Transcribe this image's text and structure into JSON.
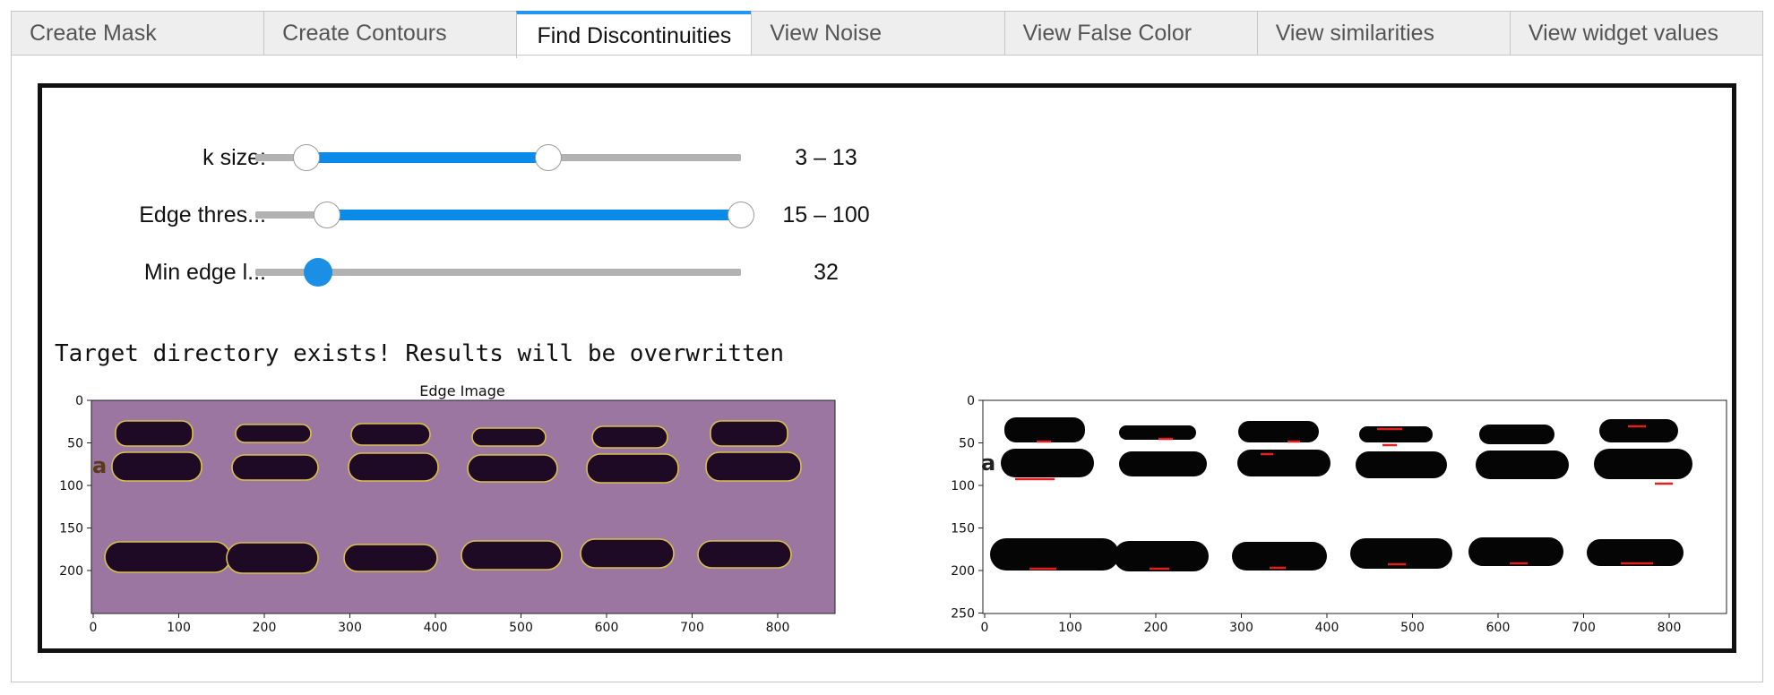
{
  "tabs": [
    {
      "label": "Create Mask",
      "active": false
    },
    {
      "label": "Create Contours",
      "active": false
    },
    {
      "label": "Find Discontinuities",
      "active": true
    },
    {
      "label": "View Noise",
      "active": false
    },
    {
      "label": "View False Color",
      "active": false
    },
    {
      "label": "View similarities",
      "active": false
    },
    {
      "label": "View widget values",
      "active": false
    }
  ],
  "sliders": {
    "ksize": {
      "label": "k size:",
      "readout": "3 – 13",
      "low": 3,
      "high": 13,
      "min": 1,
      "max": 21
    },
    "edge_thresh": {
      "label": "Edge thres...",
      "readout": "15 – 100",
      "low": 15,
      "high": 100,
      "min": 0,
      "max": 100
    },
    "min_edge_len": {
      "label": "Min edge l...",
      "readout": "32",
      "value": 32,
      "min": 0,
      "max": 300
    }
  },
  "message": "Target directory exists! Results will be overwritten",
  "left_plot": {
    "title": "Edge Image",
    "side_label": "a",
    "xticks": [
      "0",
      "100",
      "200",
      "300",
      "400",
      "500",
      "600",
      "700",
      "800"
    ],
    "yticks": [
      "0",
      "50",
      "100",
      "150",
      "200"
    ]
  },
  "right_plot": {
    "side_label": "a",
    "xticks": [
      "0",
      "100",
      "200",
      "300",
      "400",
      "500",
      "600",
      "700",
      "800"
    ],
    "yticks": [
      "0",
      "50",
      "100",
      "150",
      "200",
      "250"
    ]
  },
  "colors": {
    "accent": "#2196f3",
    "slider_fill": "#0a8be8",
    "edge_bg": "#9a76a1",
    "band_dark": "#1f0a26",
    "contour": "#d8c04a",
    "marker": "#e02020"
  }
}
